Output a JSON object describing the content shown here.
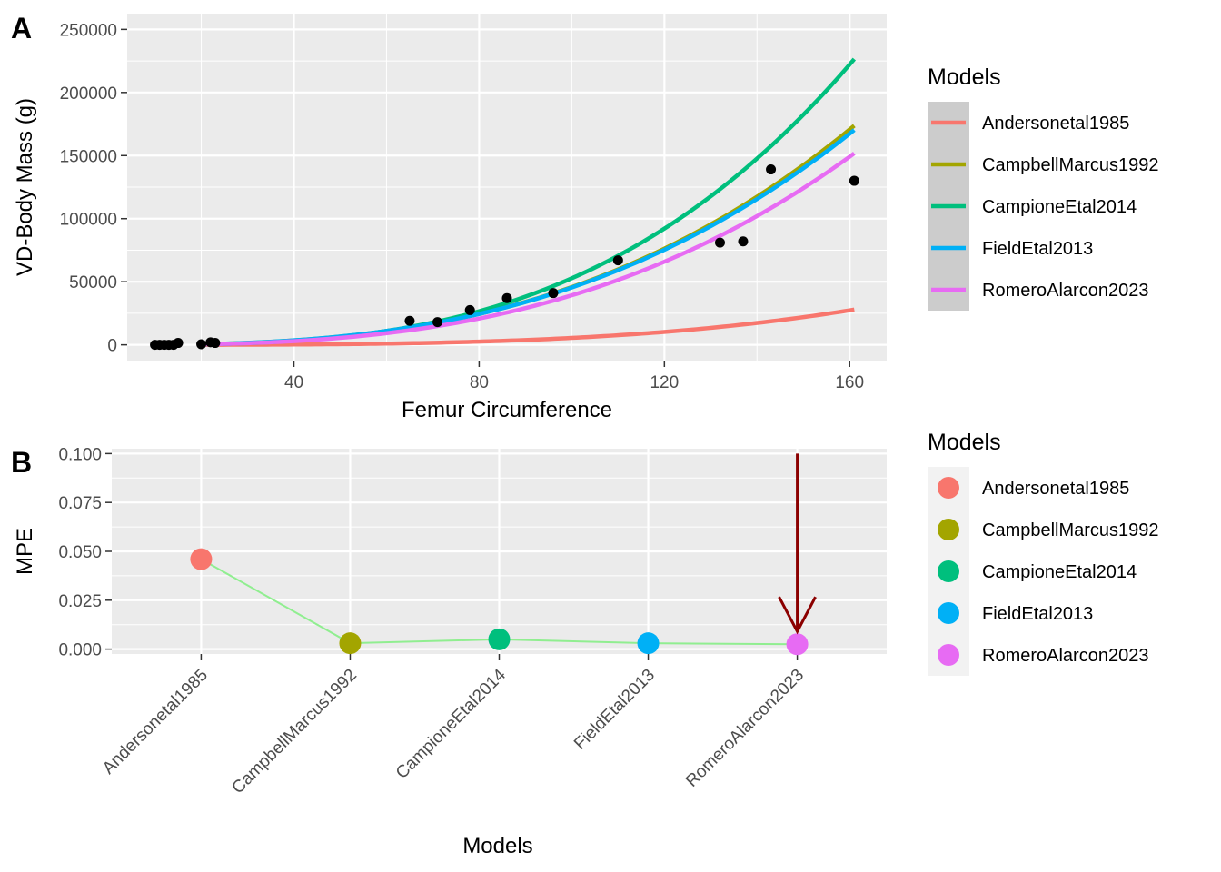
{
  "chart_data": [
    {
      "type": "line",
      "panel_tag": "A",
      "title": "",
      "xlabel": "Femur Circumference",
      "ylabel": "VD-Body Mass (g)",
      "xlim": [
        4,
        168
      ],
      "ylim": [
        -12500,
        262500
      ],
      "x_ticks": [
        40,
        80,
        120,
        160
      ],
      "x_tick_labels": [
        "40",
        "80",
        "120",
        "160"
      ],
      "y_ticks": [
        0,
        50000,
        100000,
        150000,
        200000,
        250000
      ],
      "y_tick_labels": [
        "0",
        "50000",
        "100000",
        "150000",
        "200000",
        "250000"
      ],
      "grid": true,
      "legend": {
        "title": "Models",
        "placement": "right",
        "items": [
          "Andersonetal1985",
          "CampbellMarcus1992",
          "CampioneEtal2014",
          "FieldEtal2013",
          "RomeroAlarcon2023"
        ]
      },
      "series": [
        {
          "name": "Andersonetal1985",
          "color": "#F8766D",
          "model": {
            "a": 0.0008,
            "b": 3.418
          },
          "x_range": [
            20,
            161
          ]
        },
        {
          "name": "CampbellMarcus1992",
          "color": "#A3A500",
          "model": {
            "a": 0.115,
            "b": 2.8
          },
          "x_range": [
            20,
            161
          ]
        },
        {
          "name": "CampioneEtal2014",
          "color": "#00BF7D",
          "model": {
            "a": 0.04,
            "b": 3.06
          },
          "x_range": [
            20,
            161
          ]
        },
        {
          "name": "FieldEtal2013",
          "color": "#00B0F6",
          "model": {
            "a": 0.128,
            "b": 2.775
          },
          "x_range": [
            20,
            161
          ]
        },
        {
          "name": "RomeroAlarcon2023",
          "color": "#E76BF3",
          "model": {
            "a": 0.082,
            "b": 2.84
          },
          "x_range": [
            20,
            161
          ]
        }
      ],
      "points": {
        "color": "#000000",
        "x": [
          10,
          11,
          12,
          13,
          14,
          15,
          20,
          22,
          23,
          65,
          71,
          78,
          86,
          96,
          110,
          132,
          137,
          143,
          161
        ],
        "y": [
          0,
          0,
          0,
          0,
          0,
          1500,
          500,
          2000,
          1500,
          19000,
          18000,
          27500,
          37000,
          41000,
          67000,
          81000,
          82000,
          139000,
          130000
        ]
      }
    },
    {
      "type": "scatter",
      "panel_tag": "B",
      "title": "",
      "xlabel": "Models",
      "ylabel": "MPE",
      "categories": [
        "Andersonetal1985",
        "CampbellMarcus1992",
        "CampioneEtal2014",
        "FieldEtal2013",
        "RomeroAlarcon2023"
      ],
      "values": [
        0.046,
        0.003,
        0.005,
        0.003,
        0.0025
      ],
      "colors": [
        "#F8766D",
        "#A3A500",
        "#00BF7D",
        "#00B0F6",
        "#E76BF3"
      ],
      "connector_color": "#90EE90",
      "ylim": [
        -0.0025,
        0.1025
      ],
      "y_ticks": [
        0,
        0.025,
        0.05,
        0.075,
        0.1
      ],
      "y_tick_labels": [
        "0.000",
        "0.025",
        "0.050",
        "0.075",
        "0.100"
      ],
      "grid": true,
      "highlight": {
        "category": "RomeroAlarcon2023",
        "color": "#8B0000",
        "from_value": 0.1,
        "to_value": 0.0025
      },
      "legend": {
        "title": "Models",
        "placement": "right",
        "items": [
          "Andersonetal1985",
          "CampbellMarcus1992",
          "CampioneEtal2014",
          "FieldEtal2013",
          "RomeroAlarcon2023"
        ]
      }
    }
  ]
}
